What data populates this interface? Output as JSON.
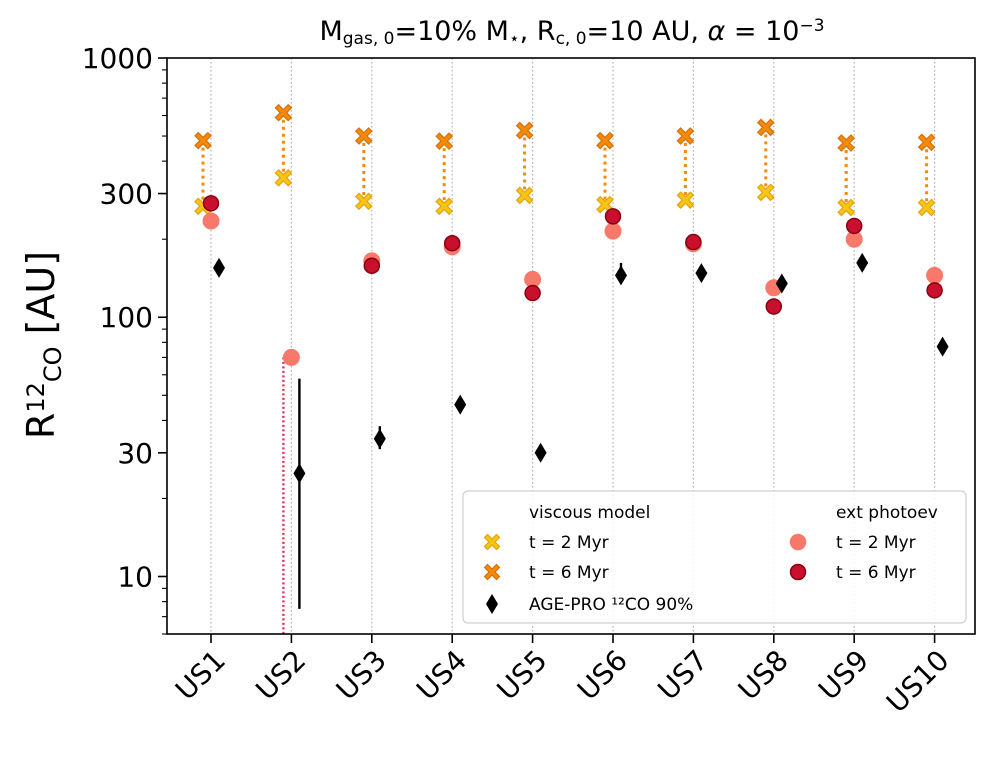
{
  "chart_data": {
    "type": "scatter",
    "title": {
      "parts": [
        {
          "text": "M",
          "baseline": "normal"
        },
        {
          "text": "gas, 0",
          "baseline": "sub"
        },
        {
          "text": "=10% M",
          "baseline": "normal"
        },
        {
          "text": "⋆",
          "baseline": "sub"
        },
        {
          "text": ",   R",
          "baseline": "normal"
        },
        {
          "text": "c, 0",
          "baseline": "sub"
        },
        {
          "text": "=10 AU,   ",
          "baseline": "normal"
        },
        {
          "text": "α",
          "baseline": "italic"
        },
        {
          "text": " = 10",
          "baseline": "normal"
        },
        {
          "text": "−3",
          "baseline": "super"
        }
      ]
    },
    "ylabel": {
      "main": "R",
      "super": "12",
      "sub": "CO",
      "unit": " [AU]"
    },
    "yscale": "log",
    "ylim": [
      6,
      1000
    ],
    "yticks": [
      10,
      30,
      100,
      300,
      1000
    ],
    "yticklabels": [
      "10",
      "30",
      "100",
      "300",
      "1000"
    ],
    "categories": [
      "US1",
      "US2",
      "US3",
      "US4",
      "US5",
      "US6",
      "US7",
      "US8",
      "US9",
      "US10"
    ],
    "grid": "vertical-dotted",
    "legend": {
      "placement": "lower-right",
      "col1_header": "viscous model",
      "col2_header": "ext photoev",
      "items_col1": [
        {
          "label": "t = 2 Myr",
          "series": "viscous_2"
        },
        {
          "label": "t = 6 Myr",
          "series": "viscous_6"
        },
        {
          "label": "AGE-PRO ¹²CO 90%",
          "series": "agepro"
        }
      ],
      "items_col2": [
        {
          "label": "t = 2 Myr",
          "series": "photo_2"
        },
        {
          "label": "t = 6 Myr",
          "series": "photo_6"
        }
      ]
    },
    "series": [
      {
        "key": "viscous_2",
        "marker": "X",
        "color": "#f5c518",
        "edge": "#e8a20a",
        "values": [
          268,
          345,
          280,
          268,
          295,
          272,
          283,
          303,
          265,
          265
        ]
      },
      {
        "key": "viscous_6",
        "marker": "X",
        "color": "#f28a0c",
        "edge": "#d9700a",
        "values": [
          480,
          615,
          500,
          478,
          525,
          480,
          500,
          540,
          470,
          473
        ]
      },
      {
        "key": "photo_2",
        "marker": "o",
        "color": "#f8786a",
        "edge": "#f8786a",
        "values": [
          235,
          70,
          165,
          187,
          140,
          215,
          192,
          130,
          200,
          145
        ]
      },
      {
        "key": "photo_6",
        "marker": "o",
        "color": "#c8102e",
        "edge": "#8b0010",
        "values": [
          275,
          null,
          158,
          193,
          124,
          245,
          195,
          110,
          225,
          127
        ]
      },
      {
        "key": "agepro",
        "marker": "d",
        "color": "#000000",
        "values": [
          155,
          25,
          34,
          46,
          30,
          145,
          148,
          135,
          162,
          77
        ],
        "err_low": [
          null,
          7.5,
          31,
          null,
          null,
          137,
          141,
          null,
          null,
          null
        ],
        "err_high": [
          null,
          58,
          38,
          null,
          null,
          162,
          157,
          null,
          null,
          null
        ]
      }
    ],
    "connectors": {
      "viscous_color": "#f28a0c",
      "us2_color": "#e0305a"
    },
    "colors": {
      "grid": "#b0b0b0"
    }
  }
}
